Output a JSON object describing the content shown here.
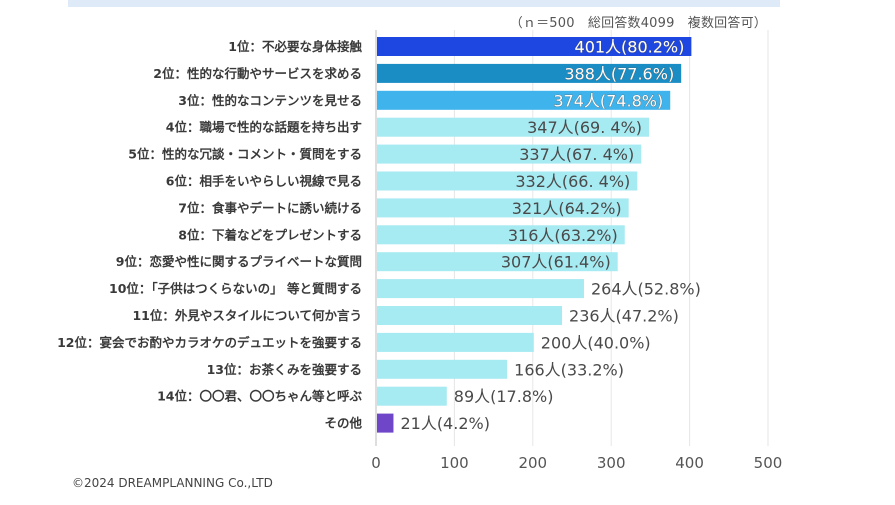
{
  "header": {
    "note": "（ｎ＝500　総回答数4099　複数回答可）"
  },
  "footer": {
    "copyright": "©2024 DREAMPLANNING Co.,LTD"
  },
  "colors": {
    "rank1": "#1e46e0",
    "rank2": "#1a8dc4",
    "rank3": "#3fb4ec",
    "rest": "#a6eaf2",
    "other": "#6f46c8",
    "grid": "#e6e6e6",
    "axis": "#bdbdbd",
    "top_band": "#dfeaf8"
  },
  "chart_data": {
    "type": "bar",
    "orientation": "horizontal",
    "title": "",
    "xlabel": "",
    "ylabel": "",
    "xlim": [
      0,
      500
    ],
    "xticks": [
      0,
      100,
      200,
      300,
      400,
      500
    ],
    "grid": true,
    "legend": "none",
    "categories": [
      "1位：不必要な身体接触",
      "2位：性的な行動やサービスを求める",
      "3位：性的なコンテンツを見せる",
      "4位：職場で性的な話題を持ち出す",
      "5位：性的な冗談・コメント・質問をする",
      "6位：相手をいやらしい視線で見る",
      "7位：食事やデートに誘い続ける",
      "8位：下着などをプレゼントする",
      "9位：恋愛や性に関するプライベートな質問",
      "10位：「子供はつくらないの」 等と質問する",
      "11位：外見やスタイルについて何か言う",
      "12位：宴会でお酌やカラオケのデュエットを強要する",
      "13位：お茶くみを強要する",
      "14位：〇〇君、〇〇ちゃん等と呼ぶ",
      "その他"
    ],
    "values": [
      401,
      388,
      374,
      347,
      337,
      332,
      321,
      316,
      307,
      264,
      236,
      200,
      166,
      89,
      21
    ],
    "data_labels": [
      "401人(80.2%)",
      "388人(77.6%)",
      "374人(74.8%)",
      "347人(69. 4%)",
      "337人(67. 4%)",
      "332人(66. 4%)",
      "321人(64.2%)",
      "316人(63.2%)",
      "307人(61.4%)",
      "264人(52.8%)",
      "236人(47.2%)",
      "200人(40.0%)",
      "166人(33.2%)",
      "89人(17.8%)",
      "21人(4.2%)"
    ],
    "percentages": [
      80.2,
      77.6,
      74.8,
      69.4,
      67.4,
      66.4,
      64.2,
      63.2,
      61.4,
      52.8,
      47.2,
      40.0,
      33.2,
      17.8,
      4.2
    ],
    "label_position": [
      "inside",
      "inside",
      "inside",
      "inside",
      "inside",
      "inside",
      "inside",
      "inside",
      "inside",
      "outside",
      "outside",
      "outside",
      "outside",
      "outside",
      "outside"
    ],
    "bar_color_keys": [
      "rank1",
      "rank2",
      "rank3",
      "rest",
      "rest",
      "rest",
      "rest",
      "rest",
      "rest",
      "rest",
      "rest",
      "rest",
      "rest",
      "rest",
      "other"
    ]
  }
}
